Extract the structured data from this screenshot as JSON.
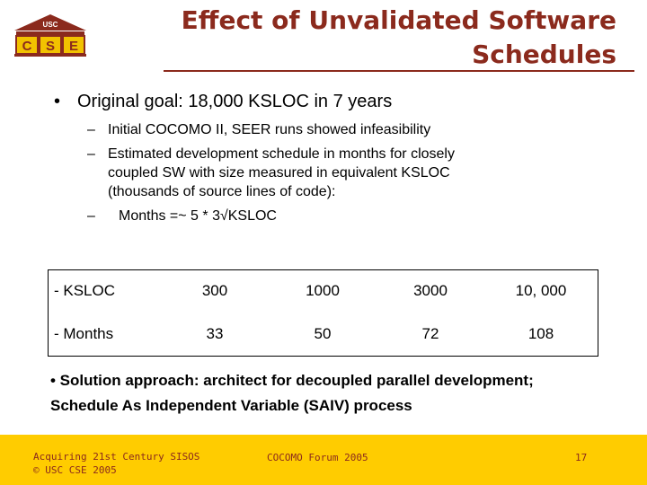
{
  "logo": {
    "top_text": "USC",
    "letters": [
      "C",
      "S",
      "E"
    ]
  },
  "title": {
    "line1": "Effect of Unvalidated Software",
    "line2": "Schedules"
  },
  "bullets": {
    "main": "Original goal: 18,000 KSLOC in 7 years",
    "subs": [
      "Initial COCOMO II, SEER runs showed infeasibility",
      "Estimated development schedule in months for closely",
      "coupled SW with size measured in equivalent KSLOC",
      "(thousands of source lines of code):",
      "Months  =~  5 *  3√KSLOC"
    ]
  },
  "table": {
    "rows": [
      {
        "label": "- KSLOC",
        "values": [
          "300",
          "1000",
          "3000",
          "10, 000"
        ]
      },
      {
        "label": "- Months",
        "values": [
          "33",
          "50",
          "72",
          "108"
        ]
      }
    ]
  },
  "solution": {
    "line1": "• Solution approach: architect for decoupled parallel development;",
    "line2": "Schedule As Independent Variable (SAIV) process"
  },
  "footer": {
    "left1": "Acquiring 21st Century SISOS",
    "left2": "© USC CSE 2005",
    "mid": "COCOMO Forum 2005",
    "page": "17"
  },
  "colors": {
    "title": "#8b2a1d",
    "footer_bg": "#ffcc00",
    "logo_fill": "#f2c200"
  }
}
